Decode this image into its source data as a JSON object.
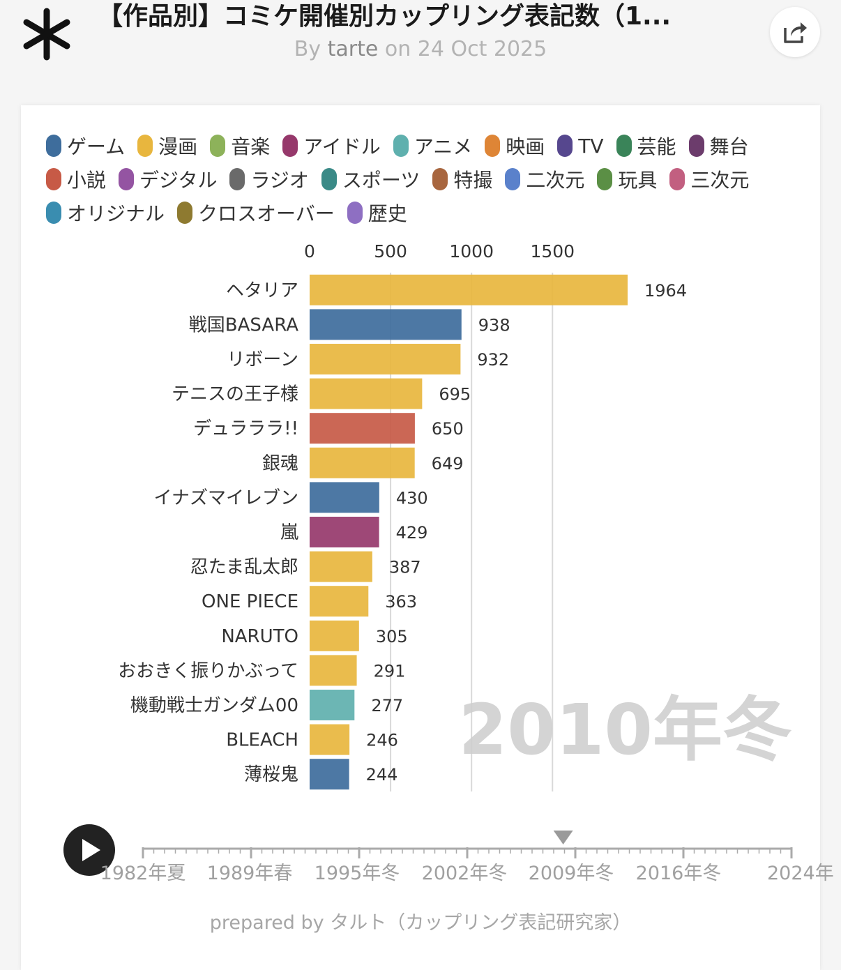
{
  "header": {
    "title": "【作品別】コミケ開催別カップリング表記数（1...",
    "byline_by": "By ",
    "author": "tarte",
    "byline_on": " on 24 Oct 2025"
  },
  "legend": [
    {
      "label": "ゲーム",
      "color": "#3e6d9c"
    },
    {
      "label": "漫画",
      "color": "#e8b63e"
    },
    {
      "label": "音楽",
      "color": "#8db25a"
    },
    {
      "label": "アイドル",
      "color": "#96386b"
    },
    {
      "label": "アニメ",
      "color": "#5fb0ae"
    },
    {
      "label": "映画",
      "color": "#de8536"
    },
    {
      "label": "TV",
      "color": "#56478e"
    },
    {
      "label": "芸能",
      "color": "#3a8459"
    },
    {
      "label": "舞台",
      "color": "#6c3c6c"
    },
    {
      "label": "小説",
      "color": "#c75a46"
    },
    {
      "label": "デジタル",
      "color": "#9454a2"
    },
    {
      "label": "ラジオ",
      "color": "#6a6a6a"
    },
    {
      "label": "スポーツ",
      "color": "#3a8a87"
    },
    {
      "label": "特撮",
      "color": "#a8663f"
    },
    {
      "label": "二次元",
      "color": "#5a81cb"
    },
    {
      "label": "玩具",
      "color": "#5b8f45"
    },
    {
      "label": "三次元",
      "color": "#c25f80"
    },
    {
      "label": "オリジナル",
      "color": "#3a8db0"
    },
    {
      "label": "クロスオーバー",
      "color": "#8e7a30"
    },
    {
      "label": "歴史",
      "color": "#8e6fc2"
    }
  ],
  "chart_data": {
    "type": "bar",
    "orientation": "horizontal",
    "period": "2010年冬",
    "xlim": [
      0,
      1964
    ],
    "x_ticks": [
      0,
      500,
      1000,
      1500
    ],
    "categories": [
      "ヘタリア",
      "戦国BASARA",
      "リボーン",
      "テニスの王子様",
      "デュラララ!!",
      "銀魂",
      "イナズマイレブン",
      "嵐",
      "忍たま乱太郎",
      "ONE PIECE",
      "NARUTO",
      "おおきく振りかぶって",
      "機動戦士ガンダム00",
      "BLEACH",
      "薄桜鬼"
    ],
    "values": [
      1964,
      938,
      932,
      695,
      650,
      649,
      430,
      429,
      387,
      363,
      305,
      291,
      277,
      246,
      244
    ],
    "bar_categories": [
      "漫画",
      "ゲーム",
      "漫画",
      "漫画",
      "小説",
      "漫画",
      "ゲーム",
      "アイドル",
      "漫画",
      "漫画",
      "漫画",
      "漫画",
      "アニメ",
      "漫画",
      "ゲーム"
    ]
  },
  "timeline": {
    "labels": [
      "1982年夏",
      "1989年春",
      "1995年冬",
      "2002年冬",
      "2009年冬",
      "2016年冬",
      "2024年"
    ],
    "current_position": 0.648,
    "play_label": "play"
  },
  "footer": {
    "text": "prepared by タルト（カップリング表記研究家）"
  }
}
